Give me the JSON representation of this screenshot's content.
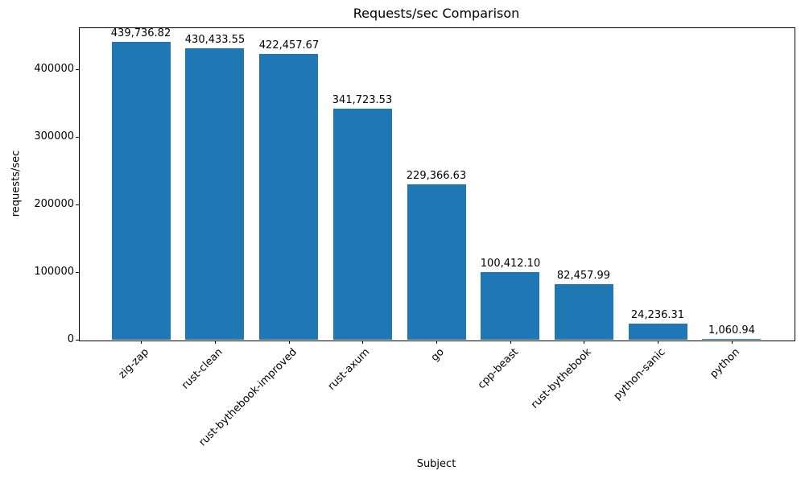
{
  "figure": {
    "title": "Requests/sec Comparison"
  },
  "chart_data": {
    "type": "bar",
    "title": "Requests/sec Comparison",
    "xlabel": "Subject",
    "ylabel": "requests/sec",
    "categories": [
      "zig-zap",
      "rust-clean",
      "rust-bythebook-improved",
      "rust-axum",
      "go",
      "cpp-beast",
      "rust-bythebook",
      "python-sanic",
      "python"
    ],
    "values": [
      439736.82,
      430433.55,
      422457.67,
      341723.53,
      229366.63,
      100412.1,
      82457.99,
      24236.31,
      1060.94
    ],
    "value_labels": [
      "439,736.82",
      "430,433.55",
      "422,457.67",
      "341,723.53",
      "229,366.63",
      "100,412.10",
      "82,457.99",
      "24,236.31",
      "1,060.94"
    ],
    "yticks": [
      0,
      100000,
      200000,
      300000,
      400000
    ],
    "ytick_labels": [
      "0",
      "100000",
      "200000",
      "300000",
      "400000"
    ],
    "ylim": [
      0,
      461724
    ],
    "xtick_rotation": 45,
    "grid": false,
    "legend": null,
    "bar_color": "#1f77b4"
  }
}
